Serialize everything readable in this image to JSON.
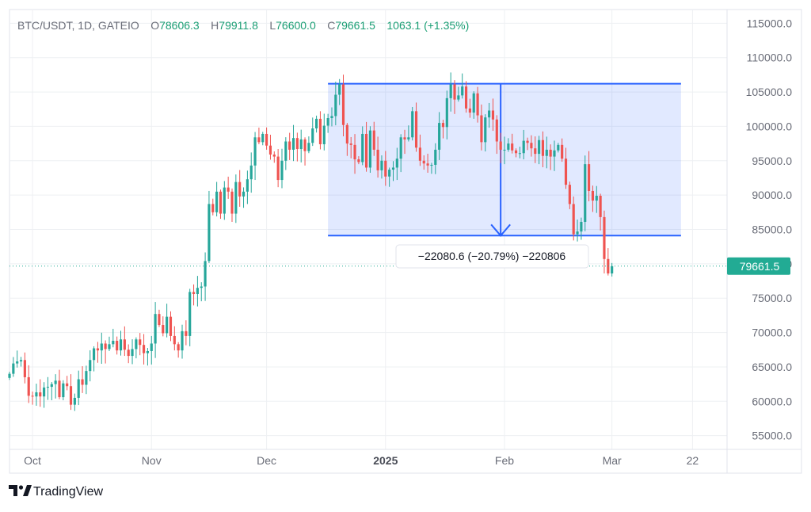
{
  "header": {
    "symbol": "BTC/USDT, 1D, GATEIO",
    "open_label": "O",
    "open": "78606.3",
    "high_label": "H",
    "high": "79911.8",
    "low_label": "L",
    "low": "76600.0",
    "close_label": "C",
    "close": "79661.5",
    "change": "1063.1 (+1.35%)"
  },
  "current_price_tag": "79661.5",
  "measure_label": "−22080.6 (−20.79%) −220806",
  "brand": "TradingView",
  "colors": {
    "up": "#26a69a",
    "down": "#ef5350",
    "accent": "#2962ff",
    "price_tag": "#22ab94"
  },
  "chart_data": {
    "type": "candlestick",
    "y_ticks": [
      "115000.0",
      "110000.0",
      "105000.0",
      "100000.0",
      "95000.0",
      "90000.0",
      "85000.0",
      "80000.0",
      "75000.0",
      "70000.0",
      "65000.0",
      "60000.0",
      "55000.0"
    ],
    "y_tick_values": [
      115000,
      110000,
      105000,
      100000,
      95000,
      90000,
      85000,
      80000,
      75000,
      70000,
      65000,
      60000,
      55000
    ],
    "ylim": [
      53000,
      117000
    ],
    "x_ticks": [
      {
        "label": "Oct",
        "date": "2024-10-01",
        "bold": false
      },
      {
        "label": "Nov",
        "date": "2024-11-01",
        "bold": false
      },
      {
        "label": "Dec",
        "date": "2024-12-01",
        "bold": false
      },
      {
        "label": "2025",
        "date": "2025-01-01",
        "bold": true
      },
      {
        "label": "Feb",
        "date": "2025-02-01",
        "bold": false
      },
      {
        "label": "Mar",
        "date": "2025-03-01",
        "bold": false
      },
      {
        "label": "22",
        "date": "2025-03-22",
        "bold": false
      }
    ],
    "x_range": [
      "2024-09-25",
      "2025-03-31"
    ],
    "first_date": "2024-09-25",
    "closes": [
      64000,
      65500,
      65800,
      66000,
      63500,
      60800,
      60700,
      61300,
      60700,
      62000,
      62100,
      62500,
      63000,
      60600,
      62600,
      62200,
      59500,
      60500,
      63200,
      62400,
      64400,
      66000,
      67700,
      67400,
      68400,
      67600,
      68300,
      68800,
      67400,
      69000,
      67500,
      66600,
      67600,
      69000,
      68200,
      67000,
      67300,
      68400,
      72700,
      71100,
      69900,
      72300,
      69500,
      68300,
      67400,
      70200,
      69500,
      75900,
      75600,
      76500,
      76700,
      80400,
      88700,
      87500,
      90500,
      87300,
      91100,
      90500,
      87300,
      91900,
      89800,
      90500,
      92300,
      94300,
      98400,
      97700,
      98900,
      97200,
      95900,
      95600,
      92200,
      95000,
      97800,
      96600,
      98300,
      96700,
      98100,
      96400,
      97600,
      99700,
      101100,
      97400,
      100100,
      101200,
      101500,
      104600,
      106100,
      100200,
      97500,
      97300,
      95200,
      94800,
      98900,
      94000,
      99400,
      96600,
      93600,
      95000,
      92700,
      93700,
      94000,
      95300,
      98400,
      98100,
      98400,
      102200,
      96900,
      95000,
      94600,
      94300,
      94400,
      96600,
      100500,
      99900,
      104100,
      106100,
      103900,
      104500,
      105800,
      102600,
      102000,
      104800,
      101600,
      97700,
      101300,
      102300,
      101000,
      97800,
      96600,
      96600,
      97500,
      96500,
      96100,
      96100,
      97900,
      97600,
      96800,
      96000,
      98000,
      95700,
      96600,
      95600,
      96500,
      97300,
      95300,
      91500,
      88700,
      84300,
      84700,
      86100,
      94500,
      90600,
      89200,
      89900,
      86800,
      80700,
      78600,
      79661
    ],
    "current_price": 79661.5,
    "rectangle": {
      "top": 106200,
      "bottom": 84100,
      "start_date": "2024-12-17",
      "end_date": "2025-03-19"
    },
    "arrow": {
      "date": "2025-01-31",
      "from": 106200,
      "to": 84100
    },
    "measure": {
      "change": -22080.6,
      "change_pct": -20.79,
      "ticks": -220806
    }
  }
}
